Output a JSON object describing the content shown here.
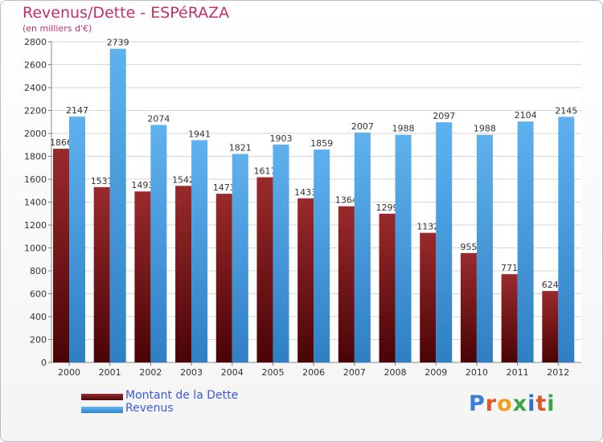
{
  "title": "Revenus/Dette - ESPéRAZA",
  "subtitle": "(en milliers d'€)",
  "logo": {
    "text": "Proxiti",
    "letter_colors": [
      "#3a7fd6",
      "#e0552b",
      "#f0a01e",
      "#3aa64a",
      "#2e6fcf",
      "#e0552b",
      "#3aa64a"
    ]
  },
  "chart_data": {
    "type": "bar",
    "categories": [
      "2000",
      "2001",
      "2002",
      "2003",
      "2004",
      "2005",
      "2006",
      "2007",
      "2008",
      "2009",
      "2010",
      "2011",
      "2012"
    ],
    "series": [
      {
        "name": "Montant de la Dette",
        "color": "#7a1416",
        "values": [
          1866,
          1531,
          1493,
          1542,
          1473,
          1617,
          1433,
          1364,
          1299,
          1132,
          955,
          771,
          624
        ],
        "labels": [
          "1866",
          "1531",
          "1493",
          "1542",
          "1473",
          "1617",
          "1433",
          "1364",
          "1299",
          "1132",
          "955",
          "771",
          "624"
        ]
      },
      {
        "name": "Revenus",
        "color": "#4aa3e8",
        "values": [
          2147,
          2739,
          2074,
          1941,
          1821,
          1903,
          1859,
          2007,
          1988,
          2097,
          1988,
          2104,
          2145
        ],
        "labels": [
          "2147",
          "2739",
          "2074",
          "1941",
          "1821",
          "1903",
          "1859",
          "2007",
          "1988",
          "2097",
          "1988",
          "2104",
          "2145"
        ]
      }
    ],
    "ylim": [
      0,
      2800
    ],
    "ytick_step": 200,
    "grid": true,
    "legend_position": "bottom-left"
  }
}
